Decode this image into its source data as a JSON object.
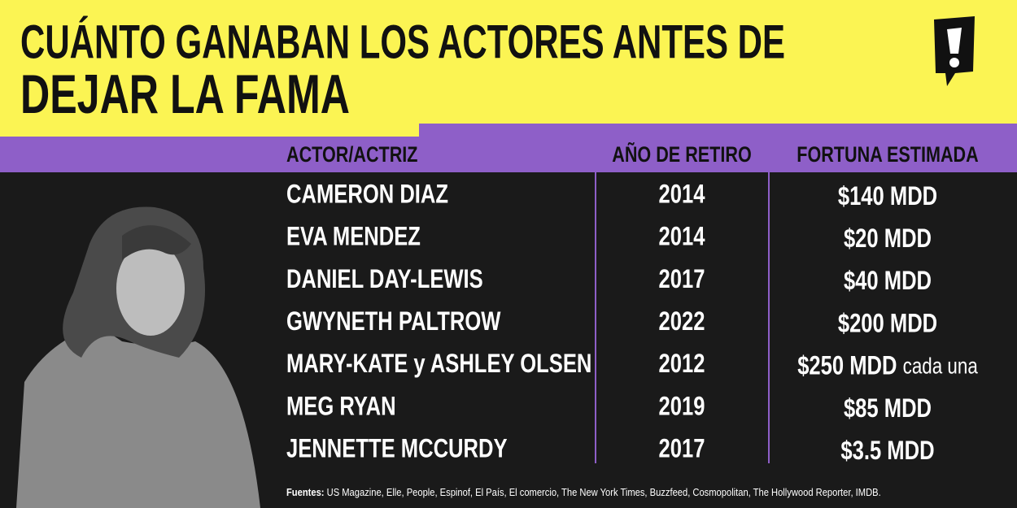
{
  "header": {
    "title_lines": [
      "CUÁNTO GANABAN LOS ACTORES ANTES DE",
      "DEJAR LA FAMA"
    ]
  },
  "table": {
    "columns": [
      "ACTOR/ACTRIZ",
      "AÑO DE RETIRO",
      "FORTUNA ESTIMADA"
    ],
    "rows": [
      {
        "name": "CAMERON DIAZ",
        "year": "2014",
        "fortune": "$140 MDD"
      },
      {
        "name": "EVA MENDEZ",
        "year": "2014",
        "fortune": "$20 MDD"
      },
      {
        "name": "DANIEL DAY-LEWIS",
        "year": "2017",
        "fortune": "$40 MDD"
      },
      {
        "name": "GWYNETH PALTROW",
        "year": "2022",
        "fortune": "$200 MDD"
      },
      {
        "name": "MARY-KATE y ASHLEY OLSEN",
        "year": "2012",
        "fortune": "$250 MDD",
        "note": "cada una"
      },
      {
        "name": "MEG RYAN",
        "year": "2019",
        "fortune": "$85 MDD"
      },
      {
        "name": "JENNETTE MCCURDY",
        "year": "2017",
        "fortune": "$3.5 MDD"
      }
    ]
  },
  "footer": {
    "label": "Fuentes:",
    "text": "US Magazine, Elle, People, Espinof, El País, El comercio, The New York Times, Buzzfeed, Cosmopolitan, The Hollywood Reporter, IMDB."
  }
}
